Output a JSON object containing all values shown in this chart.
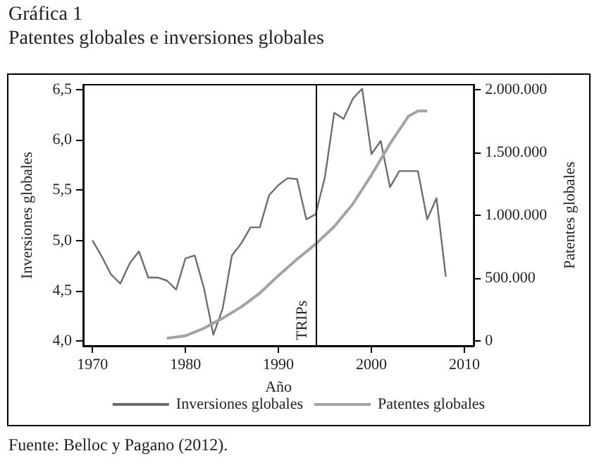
{
  "chart_data": {
    "type": "line",
    "title": "Gráfica 1",
    "subtitle": "Patentes globales e inversiones globales",
    "xlabel": "Año",
    "ylabel": "Inversiones globales",
    "y2label": "Patentes globales",
    "annotations": [
      "Fuente: Belloc y Pagano (2012)."
    ],
    "x": [
      1970,
      1971,
      1972,
      1973,
      1974,
      1975,
      1976,
      1977,
      1978,
      1979,
      1980,
      1981,
      1982,
      1983,
      1984,
      1985,
      1986,
      1987,
      1988,
      1989,
      1990,
      1991,
      1992,
      1993,
      1994,
      1995,
      1996,
      1997,
      1998,
      1999,
      2000,
      2001,
      2002,
      2003,
      2004,
      2005,
      2006,
      2007,
      2008
    ],
    "series": [
      {
        "name": "Inversiones globales",
        "color": "#6e6e6e",
        "values": [
          5.0,
          4.84,
          4.66,
          4.57,
          4.77,
          4.89,
          4.63,
          4.63,
          4.6,
          4.51,
          4.82,
          4.85,
          4.52,
          4.06,
          4.32,
          4.85,
          4.97,
          5.13,
          5.13,
          5.45,
          5.55,
          5.62,
          5.61,
          5.21,
          5.26,
          5.63,
          6.27,
          6.21,
          6.41,
          6.51,
          5.86,
          5.99,
          5.53,
          5.69,
          5.69,
          5.69,
          5.21,
          5.42,
          4.64
        ]
      },
      {
        "name": "Patentes globales",
        "color": "#a3a3a3",
        "axis": "y2",
        "x": [
          1978,
          1980,
          1982,
          1984,
          1986,
          1988,
          1990,
          1992,
          1994,
          1996,
          1998,
          2000,
          2002,
          2004,
          2005,
          2006
        ],
        "values": [
          20000,
          40000,
          100000,
          180000,
          270000,
          380000,
          520000,
          650000,
          770000,
          910000,
          1090000,
          1320000,
          1570000,
          1790000,
          1830000,
          1830000
        ]
      }
    ],
    "xlim": [
      1969,
      2011
    ],
    "xticks": [
      1970,
      1980,
      1990,
      2000,
      2010
    ],
    "ylim": [
      3.95,
      6.55
    ],
    "yticks": [
      {
        "value": 4,
        "label": "4,0"
      },
      {
        "value": 4.5,
        "label": "4,5"
      },
      {
        "value": 5,
        "label": "5,0"
      },
      {
        "value": 5.5,
        "label": "5,5"
      },
      {
        "value": 6,
        "label": "6,0"
      },
      {
        "value": 6.5,
        "label": "6,5"
      }
    ],
    "y2lim": [
      -40000,
      2040000
    ],
    "y2ticks": [
      0,
      {
        "value": 500000,
        "label": "500.000"
      },
      {
        "value": 1000000,
        "label": "1.000.000"
      },
      {
        "value": 1500000,
        "label": "1.500.000"
      },
      {
        "value": 2000000,
        "label": "2.000.000"
      }
    ],
    "ref_lines": [
      {
        "axis": "x",
        "value": 1994,
        "label": "TRIPs",
        "color": "#000000"
      }
    ],
    "grid": false,
    "legend": "bottom",
    "marker": "none",
    "line_style": "solid"
  }
}
